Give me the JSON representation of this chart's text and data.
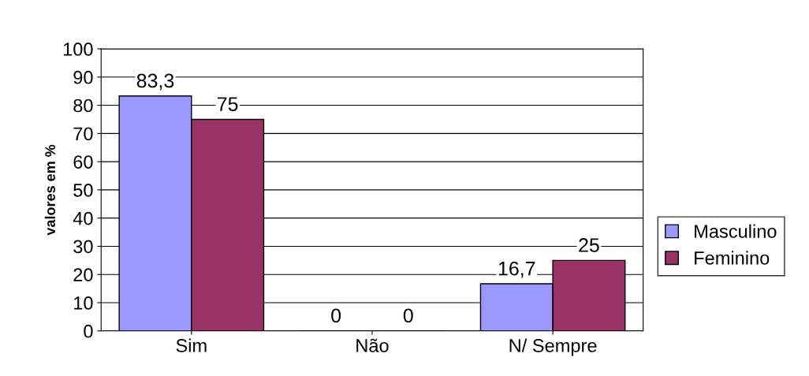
{
  "chart_data": {
    "type": "bar",
    "ylabel": "valores em %",
    "categories": [
      "Sim",
      "Não",
      "N/ Sempre"
    ],
    "series": [
      {
        "name": "Masculino",
        "color": "#9999ff",
        "values": [
          83.3,
          0,
          16.7
        ]
      },
      {
        "name": "Feminino",
        "color": "#993366",
        "values": [
          75,
          0,
          25
        ]
      }
    ],
    "value_labels": [
      [
        "83,3",
        "0",
        "16,7"
      ],
      [
        "75",
        "0",
        "25"
      ]
    ],
    "ylim": [
      0,
      100
    ],
    "yticks": [
      0,
      10,
      20,
      30,
      40,
      50,
      60,
      70,
      80,
      90,
      100
    ],
    "grid": "y",
    "legend": "right"
  }
}
